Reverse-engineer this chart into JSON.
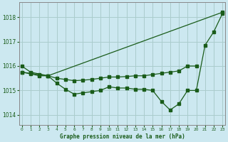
{
  "title": "Graphe pression niveau de la mer (hPa)",
  "background_color": "#cce8f0",
  "grid_color": "#aacccc",
  "line_color": "#1a5c1a",
  "x_ticks": [
    0,
    1,
    2,
    3,
    4,
    5,
    6,
    7,
    8,
    9,
    10,
    11,
    12,
    13,
    14,
    15,
    16,
    17,
    18,
    19,
    20,
    21,
    22,
    23
  ],
  "y_ticks": [
    1014,
    1015,
    1016,
    1017,
    1018
  ],
  "ylim": [
    1013.6,
    1018.6
  ],
  "xlim": [
    -0.3,
    23.3
  ],
  "series": {
    "line1": {
      "x": [
        0,
        1,
        3,
        23
      ],
      "y": [
        1016.0,
        1015.75,
        1015.6,
        1018.2
      ]
    },
    "line2": {
      "x": [
        0,
        1,
        2,
        3,
        4,
        5,
        6,
        7,
        8,
        9,
        10,
        11,
        12,
        13,
        14,
        15,
        16,
        17,
        18,
        19,
        20
      ],
      "y": [
        1015.75,
        1015.7,
        1015.65,
        1015.6,
        1015.5,
        1015.45,
        1015.4,
        1015.42,
        1015.45,
        1015.5,
        1015.55,
        1015.55,
        1015.57,
        1015.6,
        1015.6,
        1015.65,
        1015.7,
        1015.75,
        1015.8,
        1016.0,
        1016.0
      ]
    },
    "line3": {
      "x": [
        0,
        1,
        2,
        3,
        4,
        5,
        6,
        7,
        8,
        9,
        10,
        11,
        12,
        13,
        14,
        15,
        16,
        17,
        18,
        19,
        20,
        21,
        22,
        23
      ],
      "y": [
        1015.75,
        1015.68,
        1015.6,
        1015.6,
        1015.3,
        1015.05,
        1014.85,
        1014.9,
        1014.95,
        1015.0,
        1015.15,
        1015.1,
        1015.1,
        1015.05,
        1015.05,
        1015.0,
        1014.55,
        1014.2,
        1014.45,
        1015.0,
        1015.0,
        1016.85,
        1017.4,
        1018.15
      ]
    }
  }
}
